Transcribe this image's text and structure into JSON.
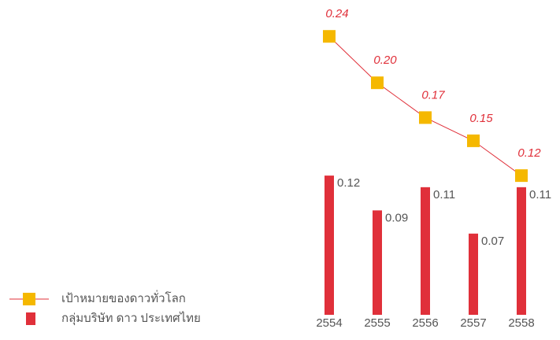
{
  "chart_data": {
    "type": "bar-line",
    "categories": [
      "2554",
      "2555",
      "2556",
      "2557",
      "2558"
    ],
    "series": [
      {
        "name": "เป้าหมายของดาวทั่วโลก",
        "type": "line",
        "color": "#f5b800",
        "line_color": "#e0303a",
        "values": [
          0.24,
          0.2,
          0.17,
          0.15,
          0.12
        ],
        "value_labels": [
          "0.24",
          "0.20",
          "0.17",
          "0.15",
          "0.12"
        ]
      },
      {
        "name": "กลุ่มบริษัท ดาว ประเทศไทย",
        "type": "bar",
        "color": "#e0303a",
        "values": [
          0.12,
          0.09,
          0.11,
          0.07,
          0.11
        ],
        "value_labels": [
          "0.12",
          "0.09",
          "0.11",
          "0.07",
          "0.11"
        ]
      }
    ],
    "ylim": [
      0,
      0.27
    ]
  }
}
